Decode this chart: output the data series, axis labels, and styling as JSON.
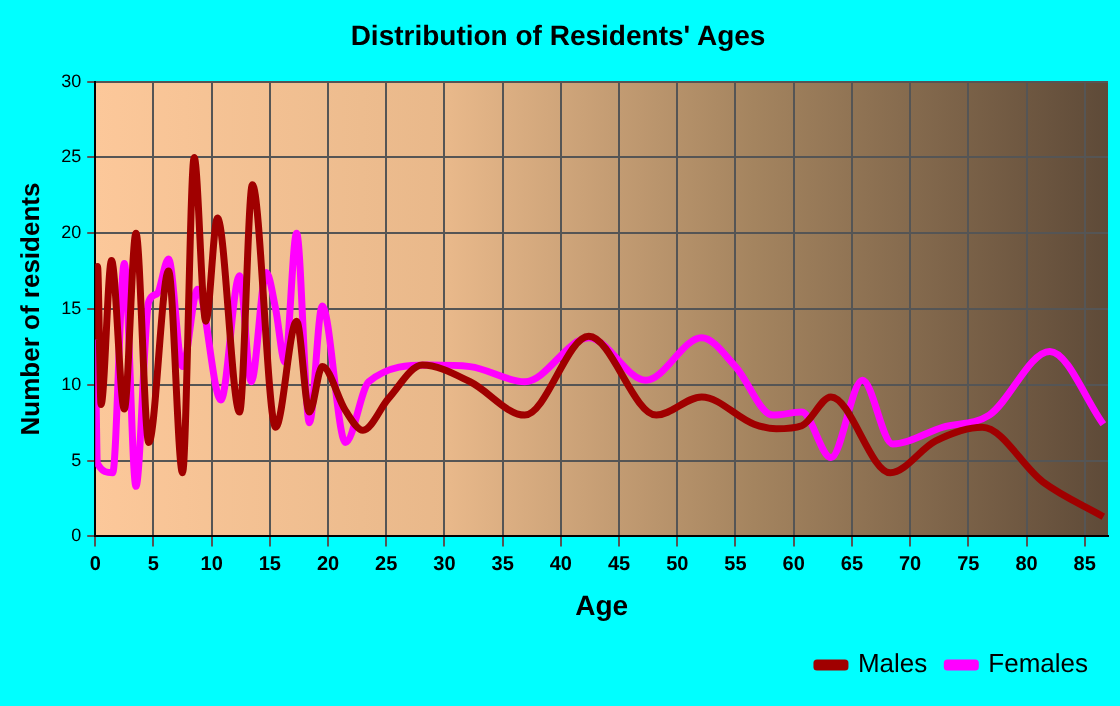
{
  "chart_data": {
    "type": "line",
    "title": "Distribution of Residents' Ages",
    "xlabel": "Age",
    "ylabel": "Number of residents",
    "xlim": [
      0,
      87
    ],
    "xticks": [
      0,
      5,
      10,
      15,
      20,
      25,
      30,
      35,
      40,
      45,
      50,
      55,
      60,
      65,
      70,
      75,
      80,
      85
    ],
    "ylim": [
      0,
      30
    ],
    "yticks": [
      0,
      5,
      10,
      15,
      20,
      25,
      30
    ],
    "grid": true,
    "legend": "bottom right",
    "marker": "none",
    "line_style": "solid",
    "series": [
      {
        "name": "Males",
        "color": "#a00000",
        "x": [
          0,
          0.2,
          0.5,
          1.4,
          2.5,
          3.5,
          4.6,
          6.3,
          7.5,
          8.5,
          9.5,
          10.5,
          12.4,
          13.5,
          15.5,
          17.3,
          18.4,
          19.5,
          21.5,
          23,
          25.2,
          28.1,
          32.2,
          36.9,
          42.4,
          48.2,
          52.1,
          56.6,
          58.5,
          60.7,
          63.2,
          68.3,
          72.2,
          76.2,
          81.4,
          86.6
        ],
        "values": [
          13,
          17.8,
          8.7,
          18.2,
          8.4,
          20,
          6.2,
          17.5,
          4.2,
          25,
          14.2,
          21,
          8.2,
          23.2,
          7.2,
          14.2,
          8.2,
          11.2,
          8.3,
          7,
          9.1,
          11.3,
          10.2,
          8,
          13.2,
          8,
          9.2,
          7.4,
          7.1,
          7.3,
          9.2,
          4.2,
          6.3,
          7.2,
          3.6,
          1.3
        ]
      },
      {
        "name": "Females",
        "color": "#ff00ff",
        "x": [
          0,
          0.2,
          1.5,
          2.5,
          3.5,
          4.6,
          5.3,
          6.3,
          7.5,
          8.8,
          10.8,
          12.4,
          13.4,
          14.7,
          15.5,
          16.3,
          17.3,
          18.4,
          19.5,
          21.5,
          23.5,
          28.7,
          32.2,
          36.9,
          42.4,
          47.3,
          52.1,
          55,
          58.2,
          60.7,
          63.2,
          65.9,
          68.5,
          72.8,
          76.8,
          82,
          86.6
        ],
        "values": [
          13,
          4.8,
          4.2,
          18,
          3.3,
          15.5,
          16,
          18.3,
          11.2,
          16.3,
          9,
          17.2,
          10.2,
          17.4,
          15,
          11.5,
          20,
          7.5,
          15.2,
          6.2,
          10.2,
          11.3,
          11.2,
          10.2,
          13.1,
          10.3,
          13.1,
          11.2,
          8,
          8.2,
          5.2,
          10.3,
          6.1,
          7.2,
          8,
          12.2,
          7.4
        ]
      }
    ]
  }
}
